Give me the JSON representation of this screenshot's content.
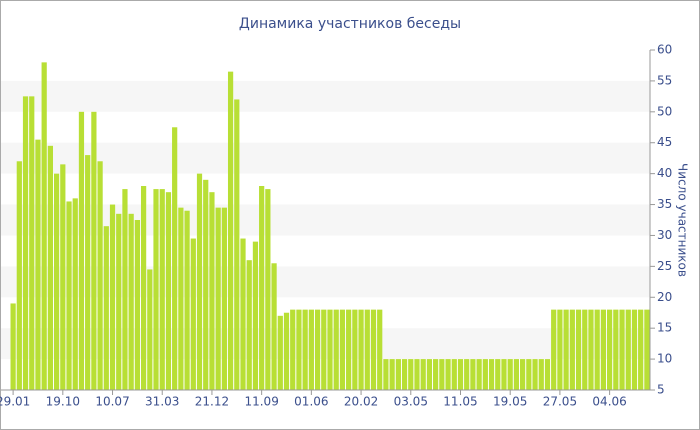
{
  "chart_data": {
    "type": "bar",
    "title": "Динамика участников беседы",
    "y_label": "Число участников",
    "categories": [
      "29.01",
      null,
      null,
      null,
      null,
      null,
      null,
      null,
      "19.10",
      null,
      null,
      null,
      null,
      null,
      null,
      null,
      "10.07",
      null,
      null,
      null,
      null,
      null,
      null,
      null,
      "31.03",
      null,
      null,
      null,
      null,
      null,
      null,
      null,
      "21.12",
      null,
      null,
      null,
      null,
      null,
      null,
      null,
      "11.09",
      null,
      null,
      null,
      null,
      null,
      null,
      null,
      "01.06",
      null,
      null,
      null,
      null,
      null,
      null,
      null,
      "20.02",
      null,
      null,
      null,
      null,
      null,
      null,
      null,
      "03.05",
      null,
      null,
      null,
      null,
      null,
      null,
      null,
      "11.05",
      null,
      null,
      null,
      null,
      null,
      null,
      null,
      "19.05",
      null,
      null,
      null,
      null,
      null,
      null,
      null,
      "27.05",
      null,
      null,
      null,
      null,
      null,
      null,
      null,
      "04.06",
      null,
      null,
      null,
      null,
      null,
      null
    ],
    "values": [
      19,
      42,
      52.5,
      52.5,
      45.5,
      58,
      44.5,
      40,
      41.5,
      35.5,
      36,
      50,
      43,
      50,
      42,
      31.5,
      35,
      33.5,
      37.5,
      33.5,
      32.5,
      38,
      24.5,
      37.5,
      37.5,
      37,
      47.5,
      34.5,
      34,
      29.5,
      40,
      39,
      37,
      34.5,
      34.5,
      56.5,
      52,
      29.5,
      26,
      29,
      38,
      37.5,
      25.5,
      17,
      17.5,
      18,
      18,
      18,
      18,
      18,
      18,
      18,
      18,
      18,
      18,
      18,
      18,
      18,
      18,
      18,
      10,
      10,
      10,
      10,
      10,
      10,
      10,
      10,
      10,
      10,
      10,
      10,
      10,
      10,
      10,
      10,
      10,
      10,
      10,
      10,
      10,
      10,
      10,
      10,
      10,
      10,
      10,
      18,
      18,
      18,
      18,
      18,
      18,
      18,
      18,
      18,
      18,
      18,
      18,
      18,
      18,
      18,
      18
    ],
    "color": "#b8df35",
    "ylim": [
      5,
      60
    ],
    "yticks": [
      5,
      10,
      15,
      20,
      25,
      30,
      35,
      40,
      45,
      50,
      55,
      60
    ],
    "grid": "bands",
    "y_axis_side": "right"
  }
}
